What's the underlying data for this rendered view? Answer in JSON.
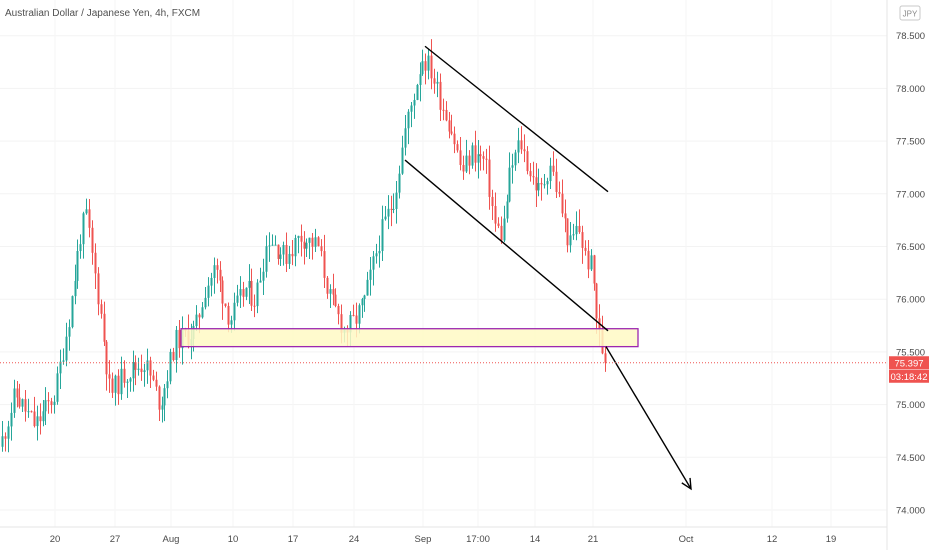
{
  "header": {
    "title": "Australian Dollar / Japanese Yen, 4h, FXCM"
  },
  "currency_badge": "JPY",
  "price_axis": {
    "last_price": "75.397",
    "countdown": "03:18:42",
    "last_price_color": "#ef5350",
    "countdown_color": "#ef5350"
  },
  "colors": {
    "up": "#26a69a",
    "down": "#ef5350",
    "zone_fill": "#fff9c4",
    "zone_border": "#9c27b0",
    "trendline": "#000000"
  },
  "chart_data": {
    "type": "candlestick",
    "title": "Australian Dollar / Japanese Yen, 4h, FXCM",
    "x_tick_labels": [
      "20",
      "27",
      "Aug",
      "10",
      "17",
      "24",
      "Sep",
      "17:00",
      "14",
      "21",
      "Oct",
      "12",
      "19"
    ],
    "y_tick_labels": [
      "74.000",
      "74.500",
      "75.000",
      "75.500",
      "76.000",
      "76.500",
      "77.000",
      "77.500",
      "78.000",
      "78.500"
    ],
    "ylim": [
      73.9,
      78.8
    ],
    "last_price": 75.397,
    "series_path": [
      [
        0,
        74.6
      ],
      [
        15,
        75.1
      ],
      [
        35,
        74.8
      ],
      [
        55,
        75.1
      ],
      [
        70,
        75.9
      ],
      [
        80,
        76.6
      ],
      [
        86,
        76.8
      ],
      [
        92,
        76.4
      ],
      [
        100,
        75.9
      ],
      [
        110,
        75.1
      ],
      [
        125,
        75.3
      ],
      [
        145,
        75.4
      ],
      [
        160,
        75.0
      ],
      [
        175,
        75.6
      ],
      [
        195,
        75.7
      ],
      [
        205,
        76.1
      ],
      [
        215,
        76.3
      ],
      [
        230,
        75.8
      ],
      [
        245,
        76.1
      ],
      [
        255,
        76.0
      ],
      [
        268,
        76.6
      ],
      [
        285,
        76.4
      ],
      [
        300,
        76.6
      ],
      [
        318,
        76.5
      ],
      [
        330,
        76.0
      ],
      [
        345,
        75.7
      ],
      [
        355,
        75.8
      ],
      [
        365,
        76.0
      ],
      [
        380,
        76.6
      ],
      [
        395,
        77.0
      ],
      [
        405,
        77.6
      ],
      [
        415,
        78.0
      ],
      [
        422,
        78.3
      ],
      [
        430,
        78.2
      ],
      [
        440,
        77.9
      ],
      [
        452,
        77.6
      ],
      [
        462,
        77.2
      ],
      [
        472,
        77.4
      ],
      [
        485,
        77.3
      ],
      [
        495,
        76.7
      ],
      [
        502,
        76.6
      ],
      [
        510,
        77.2
      ],
      [
        520,
        77.5
      ],
      [
        530,
        77.2
      ],
      [
        540,
        77.0
      ],
      [
        550,
        77.3
      ],
      [
        560,
        76.9
      ],
      [
        570,
        76.5
      ],
      [
        578,
        76.7
      ],
      [
        585,
        76.4
      ],
      [
        592,
        76.3
      ],
      [
        598,
        75.7
      ],
      [
        603,
        75.5
      ],
      [
        607,
        75.4
      ]
    ],
    "annotations": {
      "support_zone": {
        "low": 75.55,
        "high": 75.72
      },
      "channel_upper": [
        [
          425,
          78.4
        ],
        [
          608,
          77.02
        ]
      ],
      "channel_lower": [
        [
          405,
          77.32
        ],
        [
          608,
          75.7
        ]
      ],
      "projection_arrow": [
        [
          606,
          75.55
        ],
        [
          691,
          74.2
        ]
      ]
    }
  }
}
